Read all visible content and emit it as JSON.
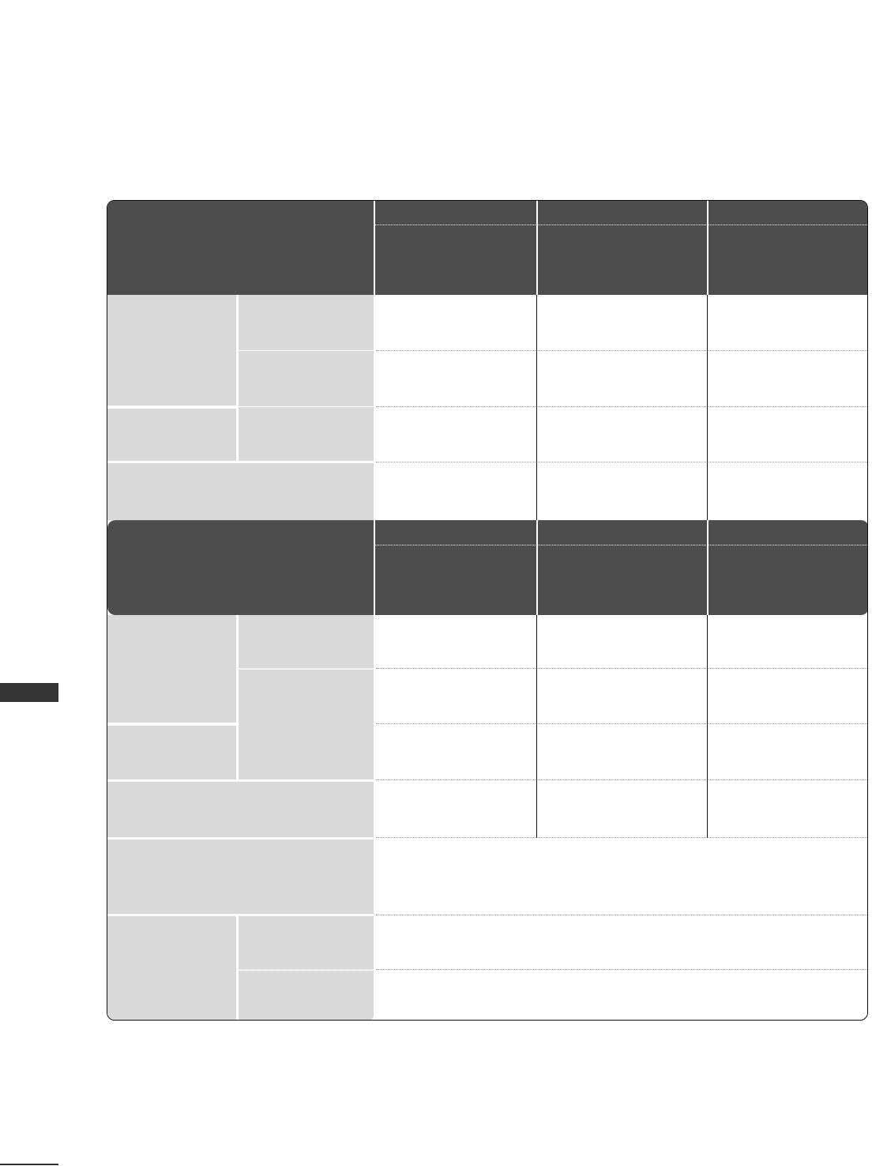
{
  "colors": {
    "header": "#4d4d4d",
    "label_cell": "#d9d9d9",
    "side_tab": "#333333",
    "border": "#111111"
  },
  "side_tab": {
    "icon": "chapter-tab"
  }
}
